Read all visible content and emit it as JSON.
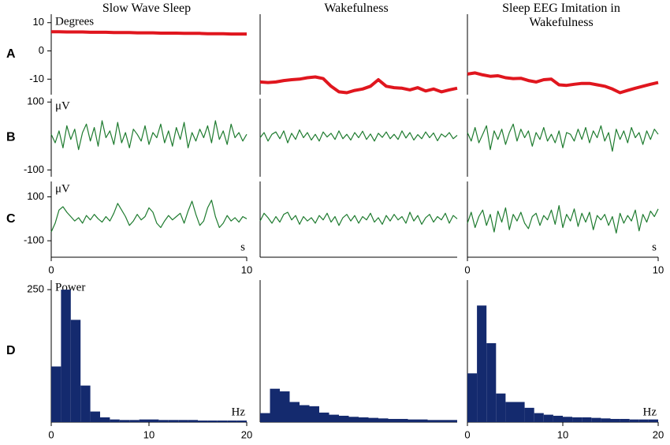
{
  "chart_data": [
    {
      "type": "line",
      "title": "Slow Wave Sleep",
      "panel": "A",
      "ylabel": "Degrees",
      "color": "#e0161e",
      "xlim": [
        0,
        10
      ],
      "ylim": [
        -15.5,
        13
      ],
      "yticks": [
        10,
        0,
        -10
      ],
      "x": [
        0,
        0.4,
        0.8,
        1.2,
        1.6,
        2,
        2.4,
        2.8,
        3.2,
        3.6,
        4,
        4.4,
        4.8,
        5.2,
        5.6,
        6,
        6.4,
        6.8,
        7.2,
        7.6,
        8,
        8.4,
        8.8,
        9.2,
        9.6,
        10
      ],
      "values": [
        6.8,
        6.8,
        6.7,
        6.7,
        6.7,
        6.6,
        6.6,
        6.6,
        6.5,
        6.5,
        6.5,
        6.4,
        6.4,
        6.4,
        6.3,
        6.3,
        6.3,
        6.2,
        6.2,
        6.2,
        6.1,
        6.1,
        6.1,
        6.0,
        6.0,
        6.0
      ]
    },
    {
      "type": "line",
      "title": "Wakefulness",
      "color": "#e0161e",
      "xlim": [
        0,
        10
      ],
      "ylim": [
        -15.5,
        13
      ],
      "x": [
        0,
        0.4,
        0.8,
        1.2,
        1.6,
        2,
        2.4,
        2.8,
        3.2,
        3.6,
        4,
        4.4,
        4.8,
        5.2,
        5.6,
        6,
        6.4,
        6.8,
        7.2,
        7.6,
        8,
        8.4,
        8.8,
        9.2,
        9.6,
        10
      ],
      "values": [
        -11,
        -11.2,
        -11,
        -10.5,
        -10.2,
        -10,
        -9.5,
        -9.2,
        -9.8,
        -12.5,
        -14.5,
        -14.8,
        -14,
        -13.5,
        -12.5,
        -10.2,
        -12.5,
        -13,
        -13.2,
        -13.8,
        -13,
        -14.2,
        -13.5,
        -14.5,
        -13.8,
        -13.2
      ]
    },
    {
      "type": "line",
      "title": "Sleep EEG Imitation in Wakefulness",
      "color": "#e0161e",
      "xlim": [
        0,
        10
      ],
      "ylim": [
        -15.5,
        13
      ],
      "x": [
        0,
        0.4,
        0.8,
        1.2,
        1.6,
        2,
        2.4,
        2.8,
        3.2,
        3.6,
        4,
        4.4,
        4.8,
        5.2,
        5.6,
        6,
        6.4,
        6.8,
        7.2,
        7.6,
        8,
        8.4,
        8.8,
        9.2,
        9.6,
        10
      ],
      "values": [
        -8.2,
        -7.8,
        -8.5,
        -9,
        -8.8,
        -9.5,
        -9.8,
        -9.7,
        -10.5,
        -11,
        -10.2,
        -10,
        -12,
        -12.2,
        -11.8,
        -11.5,
        -11.5,
        -12,
        -12.5,
        -13.5,
        -14.8,
        -14,
        -13.2,
        -12.5,
        -11.8,
        -11.2
      ]
    },
    {
      "type": "line",
      "panel": "B",
      "ylabel": "μV",
      "color": "#1e7b2f",
      "xlim": [
        0,
        10
      ],
      "ylim": [
        -120,
        110
      ],
      "yticks": [
        100,
        -100
      ],
      "x": [
        0,
        0.2,
        0.4,
        0.6,
        0.8,
        1,
        1.2,
        1.4,
        1.6,
        1.8,
        2,
        2.2,
        2.4,
        2.6,
        2.8,
        3,
        3.2,
        3.4,
        3.6,
        3.8,
        4,
        4.2,
        4.4,
        4.6,
        4.8,
        5,
        5.2,
        5.4,
        5.6,
        5.8,
        6,
        6.2,
        6.4,
        6.6,
        6.8,
        7,
        7.2,
        7.4,
        7.6,
        7.8,
        8,
        8.2,
        8.4,
        8.6,
        8.8,
        9,
        9.2,
        9.4,
        9.6,
        9.8,
        10
      ],
      "values": [
        5,
        -20,
        15,
        -35,
        30,
        -10,
        20,
        -40,
        10,
        35,
        -15,
        25,
        -30,
        45,
        -5,
        15,
        -25,
        40,
        -20,
        10,
        -35,
        20,
        5,
        -15,
        30,
        -25,
        10,
        -5,
        35,
        -20,
        15,
        -30,
        25,
        -10,
        40,
        -35,
        10,
        -15,
        20,
        -5,
        30,
        -20,
        45,
        -10,
        15,
        -25,
        35,
        -5,
        10,
        -15,
        5
      ]
    },
    {
      "type": "line",
      "color": "#1e7b2f",
      "xlim": [
        0,
        10
      ],
      "ylim": [
        -120,
        110
      ],
      "x": [
        0,
        0.2,
        0.4,
        0.6,
        0.8,
        1,
        1.2,
        1.4,
        1.6,
        1.8,
        2,
        2.2,
        2.4,
        2.6,
        2.8,
        3,
        3.2,
        3.4,
        3.6,
        3.8,
        4,
        4.2,
        4.4,
        4.6,
        4.8,
        5,
        5.2,
        5.4,
        5.6,
        5.8,
        6,
        6.2,
        6.4,
        6.6,
        6.8,
        7,
        7.2,
        7.4,
        7.6,
        7.8,
        8,
        8.2,
        8.4,
        8.6,
        8.8,
        9,
        9.2,
        9.4,
        9.6,
        9.8,
        10
      ],
      "values": [
        -5,
        10,
        -15,
        5,
        12,
        -8,
        15,
        -20,
        8,
        -10,
        18,
        -5,
        10,
        -12,
        5,
        -15,
        12,
        -3,
        8,
        -10,
        15,
        -8,
        5,
        -12,
        10,
        -5,
        14,
        -10,
        6,
        -15,
        8,
        -4,
        12,
        -8,
        5,
        -10,
        15,
        -6,
        10,
        -12,
        4,
        -8,
        12,
        -5,
        9,
        -14,
        6,
        -3,
        10,
        -8,
        2
      ]
    },
    {
      "type": "line",
      "color": "#1e7b2f",
      "xlim": [
        0,
        10
      ],
      "ylim": [
        -120,
        110
      ],
      "x": [
        0,
        0.2,
        0.4,
        0.6,
        0.8,
        1,
        1.2,
        1.4,
        1.6,
        1.8,
        2,
        2.2,
        2.4,
        2.6,
        2.8,
        3,
        3.2,
        3.4,
        3.6,
        3.8,
        4,
        4.2,
        4.4,
        4.6,
        4.8,
        5,
        5.2,
        5.4,
        5.6,
        5.8,
        6,
        6.2,
        6.4,
        6.6,
        6.8,
        7,
        7.2,
        7.4,
        7.6,
        7.8,
        8,
        8.2,
        8.4,
        8.6,
        8.8,
        9,
        9.2,
        9.4,
        9.6,
        9.8,
        10
      ],
      "values": [
        10,
        -15,
        25,
        -20,
        5,
        30,
        -40,
        15,
        -10,
        20,
        -25,
        10,
        35,
        -15,
        20,
        -5,
        15,
        -30,
        10,
        -10,
        25,
        -15,
        5,
        -20,
        15,
        -35,
        10,
        5,
        -15,
        20,
        -10,
        25,
        -20,
        15,
        -5,
        30,
        -15,
        10,
        -45,
        20,
        -10,
        15,
        -20,
        25,
        -5,
        10,
        -25,
        15,
        -10,
        20,
        5
      ]
    },
    {
      "type": "line",
      "panel": "C",
      "ylabel": "μV",
      "xlabel": "s",
      "color": "#1e7b2f",
      "xlim": [
        0,
        10
      ],
      "ylim": [
        -175,
        170
      ],
      "yticks": [
        100,
        -100
      ],
      "xticks": [
        0,
        10
      ],
      "x": [
        0,
        0.2,
        0.4,
        0.6,
        0.8,
        1,
        1.2,
        1.4,
        1.6,
        1.8,
        2,
        2.2,
        2.4,
        2.6,
        2.8,
        3,
        3.2,
        3.4,
        3.6,
        3.8,
        4,
        4.2,
        4.4,
        4.6,
        4.8,
        5,
        5.2,
        5.4,
        5.6,
        5.8,
        6,
        6.2,
        6.4,
        6.6,
        6.8,
        7,
        7.2,
        7.4,
        7.6,
        7.8,
        8,
        8.2,
        8.4,
        8.6,
        8.8,
        9,
        9.2,
        9.4,
        9.6,
        9.8,
        10
      ],
      "values": [
        -60,
        -20,
        40,
        55,
        30,
        10,
        -10,
        5,
        -20,
        15,
        -5,
        20,
        0,
        -15,
        10,
        -10,
        25,
        70,
        40,
        10,
        -30,
        -10,
        20,
        -5,
        10,
        50,
        30,
        -20,
        -40,
        -10,
        15,
        -5,
        10,
        25,
        -20,
        35,
        80,
        20,
        -30,
        -10,
        50,
        85,
        10,
        -40,
        -20,
        15,
        -10,
        5,
        -15,
        10,
        0
      ]
    },
    {
      "type": "line",
      "color": "#1e7b2f",
      "xlim": [
        0,
        10
      ],
      "ylim": [
        -175,
        170
      ],
      "x": [
        0,
        0.2,
        0.4,
        0.6,
        0.8,
        1,
        1.2,
        1.4,
        1.6,
        1.8,
        2,
        2.2,
        2.4,
        2.6,
        2.8,
        3,
        3.2,
        3.4,
        3.6,
        3.8,
        4,
        4.2,
        4.4,
        4.6,
        4.8,
        5,
        5.2,
        5.4,
        5.6,
        5.8,
        6,
        6.2,
        6.4,
        6.6,
        6.8,
        7,
        7.2,
        7.4,
        7.6,
        7.8,
        8,
        8.2,
        8.4,
        8.6,
        8.8,
        9,
        9.2,
        9.4,
        9.6,
        9.8,
        10
      ],
      "values": [
        -10,
        25,
        5,
        -20,
        10,
        -15,
        20,
        30,
        -5,
        15,
        -25,
        10,
        -10,
        5,
        -20,
        15,
        -5,
        25,
        -15,
        10,
        -30,
        5,
        20,
        -10,
        15,
        -20,
        10,
        -5,
        25,
        -15,
        5,
        -25,
        15,
        -10,
        20,
        -5,
        10,
        -20,
        30,
        -10,
        15,
        -25,
        5,
        20,
        -15,
        10,
        -5,
        25,
        -20,
        15,
        0
      ]
    },
    {
      "type": "line",
      "xlabel": "s",
      "color": "#1e7b2f",
      "xlim": [
        0,
        10
      ],
      "ylim": [
        -175,
        170
      ],
      "xticks": [
        0,
        10
      ],
      "x": [
        0,
        0.2,
        0.4,
        0.6,
        0.8,
        1,
        1.2,
        1.4,
        1.6,
        1.8,
        2,
        2.2,
        2.4,
        2.6,
        2.8,
        3,
        3.2,
        3.4,
        3.6,
        3.8,
        4,
        4.2,
        4.4,
        4.6,
        4.8,
        5,
        5.2,
        5.4,
        5.6,
        5.8,
        6,
        6.2,
        6.4,
        6.6,
        6.8,
        7,
        7.2,
        7.4,
        7.6,
        7.8,
        8,
        8.2,
        8.4,
        8.6,
        8.8,
        9,
        9.2,
        9.4,
        9.6,
        9.8,
        10
      ],
      "values": [
        -20,
        30,
        -40,
        10,
        40,
        -30,
        20,
        -60,
        35,
        -15,
        50,
        -50,
        20,
        -10,
        30,
        -20,
        -45,
        10,
        25,
        -30,
        15,
        -5,
        40,
        -25,
        60,
        -40,
        20,
        -10,
        45,
        -35,
        25,
        -15,
        30,
        -50,
        15,
        -5,
        20,
        -30,
        10,
        -65,
        25,
        -20,
        15,
        -10,
        40,
        -55,
        20,
        -15,
        35,
        10,
        45
      ]
    },
    {
      "type": "histogram",
      "panel": "D",
      "ylabel": "Power",
      "xlabel": "Hz",
      "color": "#142a6e",
      "xlim": [
        0,
        20
      ],
      "ylim": [
        0,
        268
      ],
      "yticks": [
        250
      ],
      "xticks": [
        0,
        10,
        20
      ],
      "bins": [
        0,
        1,
        2,
        3,
        4,
        5,
        6,
        7,
        8,
        9,
        10,
        11,
        12,
        13,
        14,
        15,
        16,
        17,
        18,
        19,
        20
      ],
      "values": [
        105,
        250,
        193,
        69,
        20,
        9,
        5,
        4,
        4,
        5,
        5,
        4,
        4,
        4,
        4,
        3,
        3,
        3,
        3,
        3
      ]
    },
    {
      "type": "histogram",
      "color": "#142a6e",
      "xlim": [
        0,
        20
      ],
      "ylim": [
        0,
        268
      ],
      "bins": [
        0,
        1,
        2,
        3,
        4,
        5,
        6,
        7,
        8,
        9,
        10,
        11,
        12,
        13,
        14,
        15,
        16,
        17,
        18,
        19,
        20
      ],
      "values": [
        17,
        63,
        58,
        38,
        32,
        30,
        18,
        14,
        12,
        10,
        9,
        8,
        7,
        6,
        6,
        5,
        5,
        4,
        4,
        4
      ]
    },
    {
      "type": "histogram",
      "xlabel": "Hz",
      "color": "#142a6e",
      "xlim": [
        0,
        20
      ],
      "ylim": [
        0,
        268
      ],
      "xticks": [
        0,
        10,
        20
      ],
      "bins": [
        0,
        1,
        2,
        3,
        4,
        5,
        6,
        7,
        8,
        9,
        10,
        11,
        12,
        13,
        14,
        15,
        16,
        17,
        18,
        19,
        20
      ],
      "values": [
        92,
        220,
        149,
        54,
        38,
        38,
        27,
        17,
        14,
        12,
        10,
        9,
        9,
        8,
        7,
        6,
        6,
        5,
        5,
        5
      ]
    }
  ]
}
